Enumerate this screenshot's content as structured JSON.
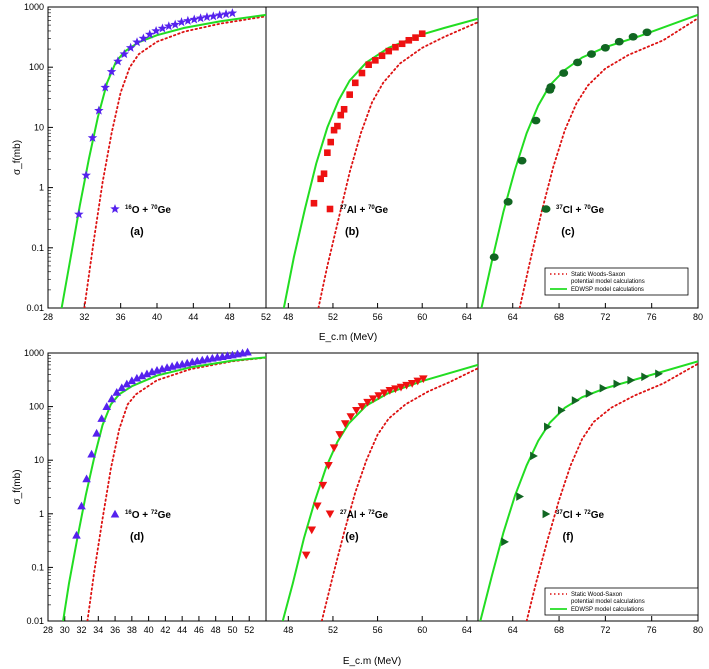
{
  "chart_data": {
    "type": "scatter",
    "x_axis_label_top": "E_c.m (MeV)",
    "x_axis_label_bottom": "E_c.m (MeV)",
    "y_axis_label": "σ_f(mb)",
    "y_scale": "log",
    "ylim": [
      0.01,
      1000
    ],
    "y_ticks": [
      "0.01",
      "0.1",
      "1",
      "10",
      "100",
      "1000"
    ],
    "legend": {
      "static_label": "Static Woods-Saxon",
      "static_label_line2": "potential model calculations",
      "edwsp_label": "EDWSP model calculations",
      "static_label_bottom": "Static Wood-Saxon",
      "static_label_bottom_line2": "potential model calculations",
      "edwsp_label_bottom": "EDWSP model calculations",
      "static_color": "#dd1111",
      "edwsp_color": "#22dd22"
    },
    "panels": [
      {
        "id": "a",
        "label": "(a)",
        "projectile_mass": "16",
        "projectile": "O",
        "target_mass": "70",
        "target": "Ge",
        "marker": "star",
        "color": "#5522ee",
        "xlim": [
          28,
          52
        ],
        "x_ticks": [
          "28",
          "32",
          "36",
          "40",
          "44",
          "48",
          "52"
        ],
        "points": [
          [
            31.4,
            0.36
          ],
          [
            32.2,
            1.6
          ],
          [
            32.9,
            6.7
          ],
          [
            33.6,
            19
          ],
          [
            34.3,
            46
          ],
          [
            35.0,
            84
          ],
          [
            35.7,
            125
          ],
          [
            36.4,
            165
          ],
          [
            37.1,
            210
          ],
          [
            37.8,
            260
          ],
          [
            38.5,
            300
          ],
          [
            39.2,
            350
          ],
          [
            39.9,
            400
          ],
          [
            40.6,
            440
          ],
          [
            41.3,
            480
          ],
          [
            42.0,
            510
          ],
          [
            42.7,
            560
          ],
          [
            43.4,
            590
          ],
          [
            44.1,
            620
          ],
          [
            44.8,
            650
          ],
          [
            45.5,
            680
          ],
          [
            46.2,
            700
          ],
          [
            46.9,
            730
          ],
          [
            47.6,
            760
          ],
          [
            48.3,
            790
          ]
        ],
        "edwsp_curve": [
          [
            29.5,
            0.01
          ],
          [
            30.5,
            0.07
          ],
          [
            31.5,
            0.5
          ],
          [
            32.5,
            3
          ],
          [
            33.5,
            15
          ],
          [
            34.5,
            55
          ],
          [
            35.5,
            125
          ],
          [
            36.5,
            185
          ],
          [
            38,
            260
          ],
          [
            40,
            340
          ],
          [
            43,
            450
          ],
          [
            47,
            580
          ],
          [
            52,
            740
          ]
        ],
        "static_curve": [
          [
            32.0,
            0.01
          ],
          [
            33.0,
            0.12
          ],
          [
            34.0,
            1.2
          ],
          [
            35.0,
            8
          ],
          [
            36.0,
            38
          ],
          [
            37.0,
            100
          ],
          [
            38.0,
            165
          ],
          [
            40,
            265
          ],
          [
            43,
            390
          ],
          [
            47,
            530
          ],
          [
            52,
            700
          ]
        ]
      },
      {
        "id": "b",
        "label": "(b)",
        "projectile_mass": "27",
        "projectile": "Al",
        "target_mass": "70",
        "target": "Ge",
        "marker": "square",
        "color": "#ee1111",
        "xlim": [
          46,
          65
        ],
        "x_ticks": [
          "48",
          "52",
          "56",
          "60",
          "64"
        ],
        "points": [
          [
            50.3,
            0.55
          ],
          [
            50.9,
            1.4
          ],
          [
            51.2,
            1.7
          ],
          [
            51.5,
            3.8
          ],
          [
            51.8,
            5.7
          ],
          [
            52.1,
            9
          ],
          [
            52.4,
            10.5
          ],
          [
            52.7,
            16
          ],
          [
            53.0,
            20
          ],
          [
            53.5,
            35
          ],
          [
            54.0,
            55
          ],
          [
            54.6,
            80
          ],
          [
            55.2,
            110
          ],
          [
            55.8,
            130
          ],
          [
            56.4,
            155
          ],
          [
            57.0,
            185
          ],
          [
            57.6,
            215
          ],
          [
            58.2,
            245
          ],
          [
            58.8,
            280
          ],
          [
            59.4,
            310
          ],
          [
            60.0,
            360
          ]
        ],
        "edwsp_curve": [
          [
            47.6,
            0.01
          ],
          [
            48.5,
            0.07
          ],
          [
            49.5,
            0.45
          ],
          [
            50.5,
            2.5
          ],
          [
            51.5,
            10
          ],
          [
            52.5,
            28
          ],
          [
            53.5,
            60
          ],
          [
            55,
            120
          ],
          [
            57,
            210
          ],
          [
            60,
            350
          ],
          [
            62,
            450
          ],
          [
            65,
            640
          ]
        ],
        "static_curve": [
          [
            50.7,
            0.01
          ],
          [
            51.5,
            0.05
          ],
          [
            52.5,
            0.3
          ],
          [
            53.5,
            1.8
          ],
          [
            54.5,
            8
          ],
          [
            55.5,
            26
          ],
          [
            56.5,
            55
          ],
          [
            58,
            115
          ],
          [
            60,
            210
          ],
          [
            62,
            320
          ],
          [
            65,
            560
          ]
        ]
      },
      {
        "id": "c",
        "label": "(c)",
        "projectile_mass": "37",
        "projectile": "Cl",
        "target_mass": "70",
        "target": "Ge",
        "marker": "circle",
        "color": "#116622",
        "xlim": [
          61,
          80
        ],
        "x_ticks": [
          "64",
          "68",
          "72",
          "76",
          "80"
        ],
        "points": [
          [
            62.4,
            0.07
          ],
          [
            63.6,
            0.58
          ],
          [
            64.8,
            2.8
          ],
          [
            66.0,
            13
          ],
          [
            67.2,
            42
          ],
          [
            67.3,
            47
          ],
          [
            68.4,
            80
          ],
          [
            69.6,
            120
          ],
          [
            70.8,
            165
          ],
          [
            72.0,
            210
          ],
          [
            73.2,
            265
          ],
          [
            74.4,
            320
          ],
          [
            75.6,
            380
          ]
        ],
        "edwsp_curve": [
          [
            61.3,
            0.01
          ],
          [
            62.2,
            0.06
          ],
          [
            63.2,
            0.4
          ],
          [
            64.2,
            2.0
          ],
          [
            65.2,
            8
          ],
          [
            66.2,
            23
          ],
          [
            67.2,
            50
          ],
          [
            68.5,
            90
          ],
          [
            70,
            145
          ],
          [
            72,
            215
          ],
          [
            75,
            330
          ],
          [
            80,
            740
          ]
        ],
        "static_curve": [
          [
            64.6,
            0.01
          ],
          [
            65.5,
            0.06
          ],
          [
            66.5,
            0.4
          ],
          [
            67.5,
            2.2
          ],
          [
            68.5,
            9
          ],
          [
            69.5,
            25
          ],
          [
            70.5,
            50
          ],
          [
            72,
            95
          ],
          [
            74,
            160
          ],
          [
            77,
            280
          ],
          [
            80,
            650
          ]
        ]
      },
      {
        "id": "d",
        "label": "(d)",
        "projectile_mass": "16",
        "projectile": "O",
        "target_mass": "72",
        "target": "Ge",
        "marker": "triangle-up",
        "color": "#5522ee",
        "xlim": [
          28,
          54
        ],
        "x_ticks": [
          "28",
          "30",
          "32",
          "34",
          "36",
          "38",
          "40",
          "42",
          "44",
          "46",
          "48",
          "50",
          "52"
        ],
        "points": [
          [
            31.4,
            0.4
          ],
          [
            32.0,
            1.4
          ],
          [
            32.6,
            4.5
          ],
          [
            33.2,
            13
          ],
          [
            33.8,
            32
          ],
          [
            34.4,
            60
          ],
          [
            35.0,
            100
          ],
          [
            35.6,
            140
          ],
          [
            36.2,
            185
          ],
          [
            36.8,
            225
          ],
          [
            37.4,
            265
          ],
          [
            38.0,
            305
          ],
          [
            38.6,
            340
          ],
          [
            39.2,
            375
          ],
          [
            39.8,
            410
          ],
          [
            40.4,
            445
          ],
          [
            41.0,
            475
          ],
          [
            41.6,
            505
          ],
          [
            42.2,
            535
          ],
          [
            42.8,
            565
          ],
          [
            43.4,
            595
          ],
          [
            44.0,
            620
          ],
          [
            44.6,
            650
          ],
          [
            45.2,
            680
          ],
          [
            45.8,
            710
          ],
          [
            46.4,
            740
          ],
          [
            47.0,
            770
          ],
          [
            47.6,
            800
          ],
          [
            48.2,
            830
          ],
          [
            48.8,
            860
          ],
          [
            49.4,
            890
          ],
          [
            50.0,
            920
          ],
          [
            50.6,
            960
          ],
          [
            51.2,
            1000
          ],
          [
            51.8,
            1040
          ]
        ],
        "edwsp_curve": [
          [
            29.8,
            0.01
          ],
          [
            30.5,
            0.05
          ],
          [
            31.5,
            0.35
          ],
          [
            32.5,
            2.2
          ],
          [
            33.5,
            11
          ],
          [
            34.5,
            45
          ],
          [
            35.5,
            110
          ],
          [
            36.5,
            170
          ],
          [
            38,
            240
          ],
          [
            41,
            380
          ],
          [
            45,
            540
          ],
          [
            50,
            720
          ],
          [
            54,
            830
          ]
        ],
        "static_curve": [
          [
            32.7,
            0.01
          ],
          [
            33.5,
            0.08
          ],
          [
            34.5,
            0.8
          ],
          [
            35.5,
            7
          ],
          [
            36.5,
            38
          ],
          [
            37.5,
            110
          ],
          [
            38.5,
            170
          ],
          [
            41,
            310
          ],
          [
            45,
            500
          ],
          [
            50,
            700
          ],
          [
            54,
            820
          ]
        ]
      },
      {
        "id": "e",
        "label": "(e)",
        "projectile_mass": "27",
        "projectile": "Al",
        "target_mass": "72",
        "target": "Ge",
        "marker": "triangle-down",
        "color": "#ee1111",
        "xlim": [
          46,
          65
        ],
        "x_ticks": [
          "48",
          "52",
          "56",
          "60",
          "64"
        ],
        "points": [
          [
            49.6,
            0.17
          ],
          [
            50.1,
            0.5
          ],
          [
            50.6,
            1.4
          ],
          [
            51.1,
            3.4
          ],
          [
            51.6,
            8
          ],
          [
            52.1,
            17
          ],
          [
            52.6,
            30
          ],
          [
            53.1,
            48
          ],
          [
            53.6,
            65
          ],
          [
            54.1,
            85
          ],
          [
            54.6,
            100
          ],
          [
            55.1,
            120
          ],
          [
            55.6,
            140
          ],
          [
            56.1,
            160
          ],
          [
            56.6,
            180
          ],
          [
            57.1,
            200
          ],
          [
            57.6,
            215
          ],
          [
            58.1,
            230
          ],
          [
            58.6,
            250
          ],
          [
            59.1,
            270
          ],
          [
            59.6,
            300
          ],
          [
            60.1,
            330
          ]
        ],
        "edwsp_curve": [
          [
            47.5,
            0.01
          ],
          [
            48.4,
            0.05
          ],
          [
            49.4,
            0.35
          ],
          [
            50.4,
            1.8
          ],
          [
            51.4,
            7.5
          ],
          [
            52.4,
            22
          ],
          [
            53.4,
            48
          ],
          [
            55,
            105
          ],
          [
            57,
            180
          ],
          [
            60,
            300
          ],
          [
            65,
            600
          ]
        ],
        "static_curve": [
          [
            51.0,
            0.01
          ],
          [
            52.0,
            0.07
          ],
          [
            53.0,
            0.45
          ],
          [
            54.0,
            2.5
          ],
          [
            55.0,
            10
          ],
          [
            56.0,
            30
          ],
          [
            57.0,
            60
          ],
          [
            58.5,
            110
          ],
          [
            60.5,
            190
          ],
          [
            62.5,
            290
          ],
          [
            65,
            520
          ]
        ]
      },
      {
        "id": "f",
        "label": "(f)",
        "projectile_mass": "37",
        "projectile": "Cl",
        "target_mass": "72",
        "target": "Ge",
        "marker": "triangle-right",
        "color": "#116622",
        "xlim": [
          61,
          80
        ],
        "x_ticks": [
          "64",
          "68",
          "72",
          "76",
          "80"
        ],
        "points": [
          [
            63.3,
            0.3
          ],
          [
            64.6,
            2.1
          ],
          [
            65.8,
            12
          ],
          [
            67.0,
            42
          ],
          [
            68.2,
            85
          ],
          [
            69.4,
            130
          ],
          [
            70.6,
            175
          ],
          [
            71.8,
            220
          ],
          [
            73.0,
            265
          ],
          [
            74.2,
            310
          ],
          [
            75.4,
            360
          ],
          [
            76.6,
            410
          ]
        ],
        "edwsp_curve": [
          [
            61.2,
            0.01
          ],
          [
            62.2,
            0.07
          ],
          [
            63.2,
            0.45
          ],
          [
            64.2,
            2.2
          ],
          [
            65.2,
            8
          ],
          [
            66.2,
            23
          ],
          [
            67.2,
            50
          ],
          [
            68.5,
            95
          ],
          [
            70,
            150
          ],
          [
            72,
            220
          ],
          [
            75,
            340
          ],
          [
            80,
            700
          ]
        ],
        "static_curve": [
          [
            65.2,
            0.01
          ],
          [
            66.0,
            0.05
          ],
          [
            67.0,
            0.32
          ],
          [
            68.0,
            1.8
          ],
          [
            69.0,
            8
          ],
          [
            70.0,
            25
          ],
          [
            71.0,
            52
          ],
          [
            72.5,
            95
          ],
          [
            74.5,
            160
          ],
          [
            77,
            270
          ],
          [
            80,
            630
          ]
        ]
      }
    ]
  }
}
